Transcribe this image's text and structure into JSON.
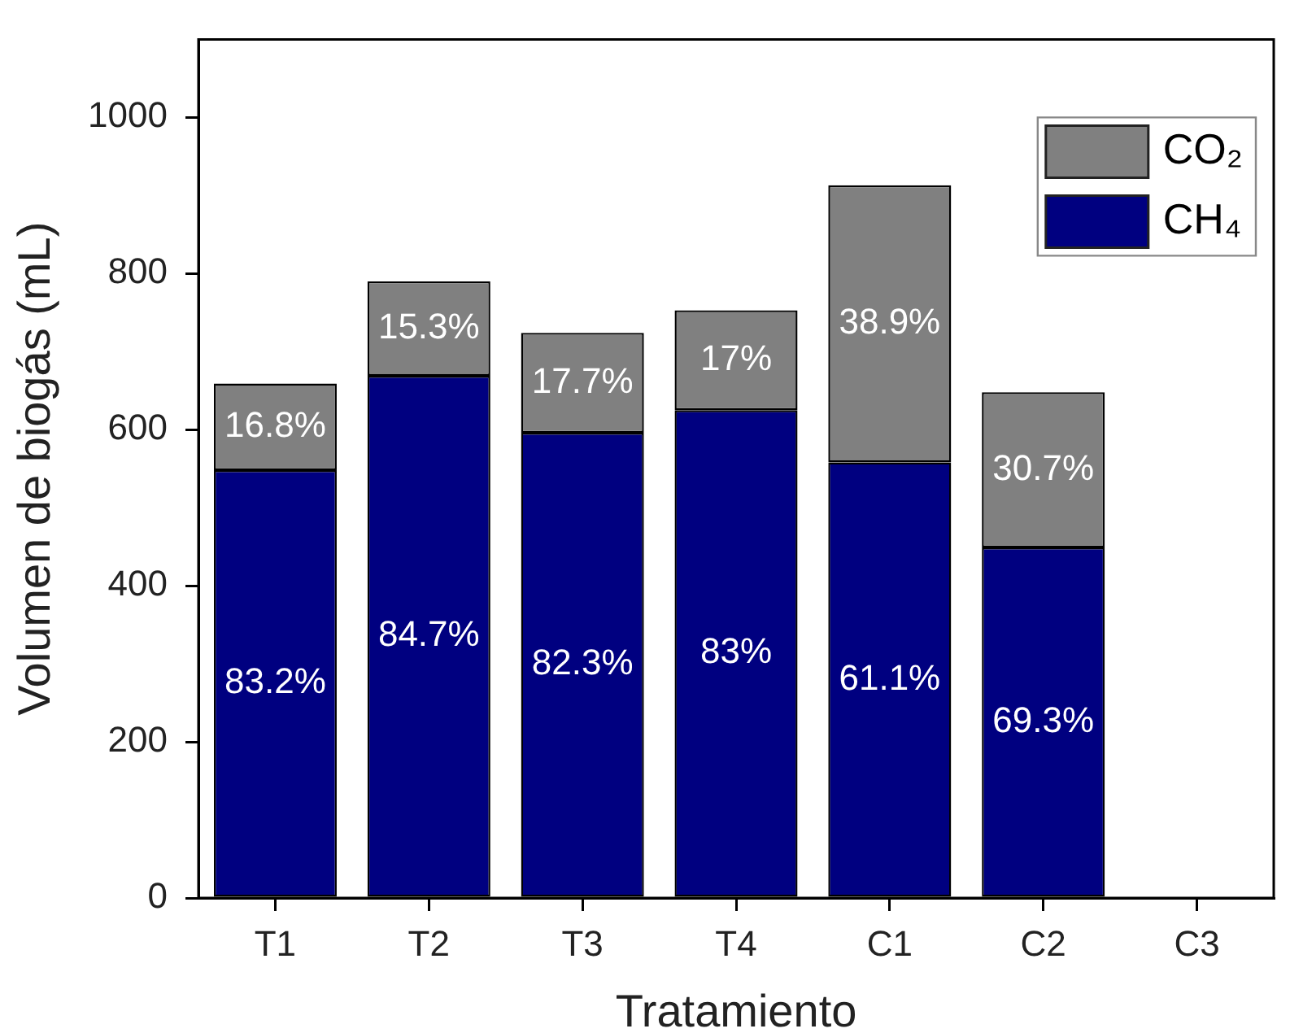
{
  "chart_data": {
    "type": "bar",
    "stacked": true,
    "xlabel": "Tratamiento",
    "ylabel": "Volumen de biogás (mL)",
    "categories": [
      "T1",
      "T2",
      "T3",
      "T4",
      "C1",
      "C2",
      "C3"
    ],
    "series": [
      {
        "name": "CH₄",
        "color": "#000080",
        "values": [
          548,
          669,
          596,
          625,
          558,
          449,
          null
        ]
      },
      {
        "name": "CO₂",
        "color": "#808080",
        "values": [
          111,
          121,
          128,
          128,
          355,
          199,
          null
        ]
      }
    ],
    "ylim": [
      0,
      1100
    ],
    "yticks": [
      0,
      200,
      400,
      600,
      800,
      1000
    ],
    "legend": "top right",
    "annotations": [
      "83.2%",
      "84.7%",
      "82.3%",
      "83%",
      "61.1%",
      "69.3%",
      "16.8%",
      "15.3%",
      "17.7%",
      "17%",
      "38.9%",
      "30.7%"
    ]
  }
}
